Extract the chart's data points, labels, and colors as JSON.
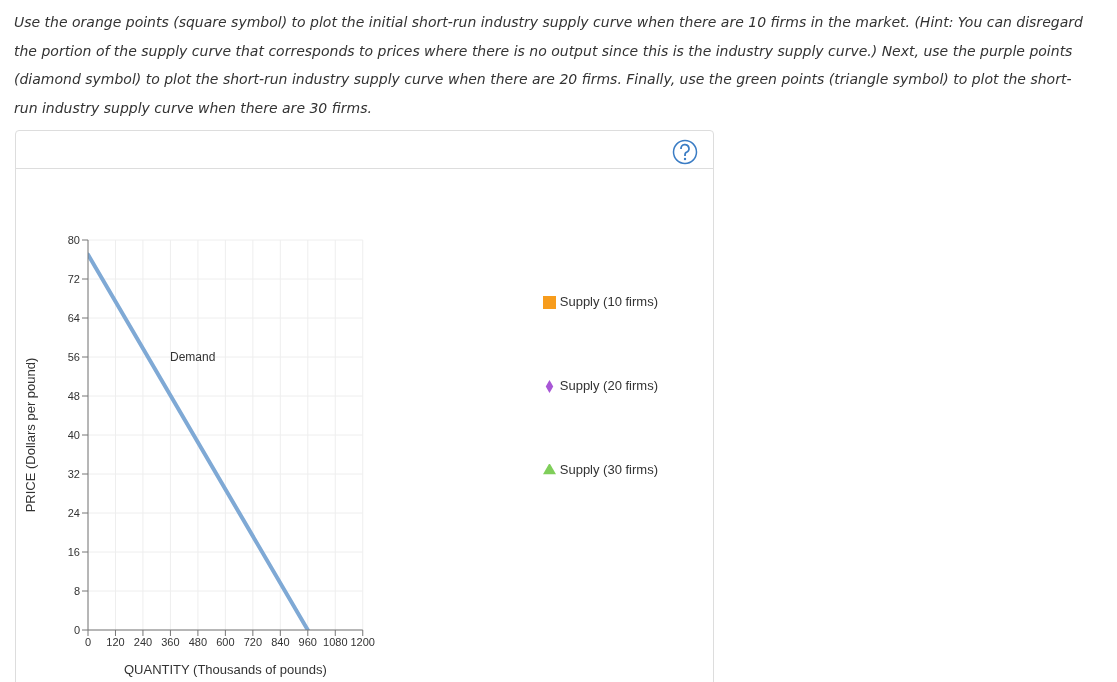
{
  "chart_data": {
    "type": "line",
    "title": "Use the orange points (square symbol) to plot the initial short-run industry supply curve when there are 10 firms in the market. (Hint: You can disregard the portion of the supply curve that corresponds to prices where there is no output since this is the industry supply curve.) Next, use the purple points (diamond symbol) to plot the short-run industry supply curve when there are 20 firms. Finally, use the green points (triangle symbol) to plot the short-run industry supply curve when there are 30 firms.",
    "xlabel": "QUANTITY (Thousands of pounds)",
    "ylabel": "PRICE (Dollars per pound)",
    "xlim": [
      0,
      1200
    ],
    "xticks": [
      0,
      120,
      240,
      360,
      480,
      600,
      720,
      840,
      960,
      1080,
      1200
    ],
    "ylim": [
      0,
      80
    ],
    "yticks": [
      0,
      8,
      16,
      24,
      32,
      40,
      48,
      56,
      64,
      72,
      80
    ],
    "grid": true,
    "legend": "right",
    "series": [
      {
        "name": "Demand",
        "color": "#7fa9d5",
        "x": [
          0,
          960
        ],
        "values": [
          77,
          0
        ],
        "marker": "none"
      },
      {
        "name": "Supply (10 firms)",
        "color": "#f79c1c",
        "marker": "square"
      },
      {
        "name": "Supply (20 firms)",
        "color": "#a857d6",
        "marker": "diamond"
      },
      {
        "name": "Supply (30 firms)",
        "color": "#7fce5a",
        "marker": "triangle"
      }
    ]
  }
}
